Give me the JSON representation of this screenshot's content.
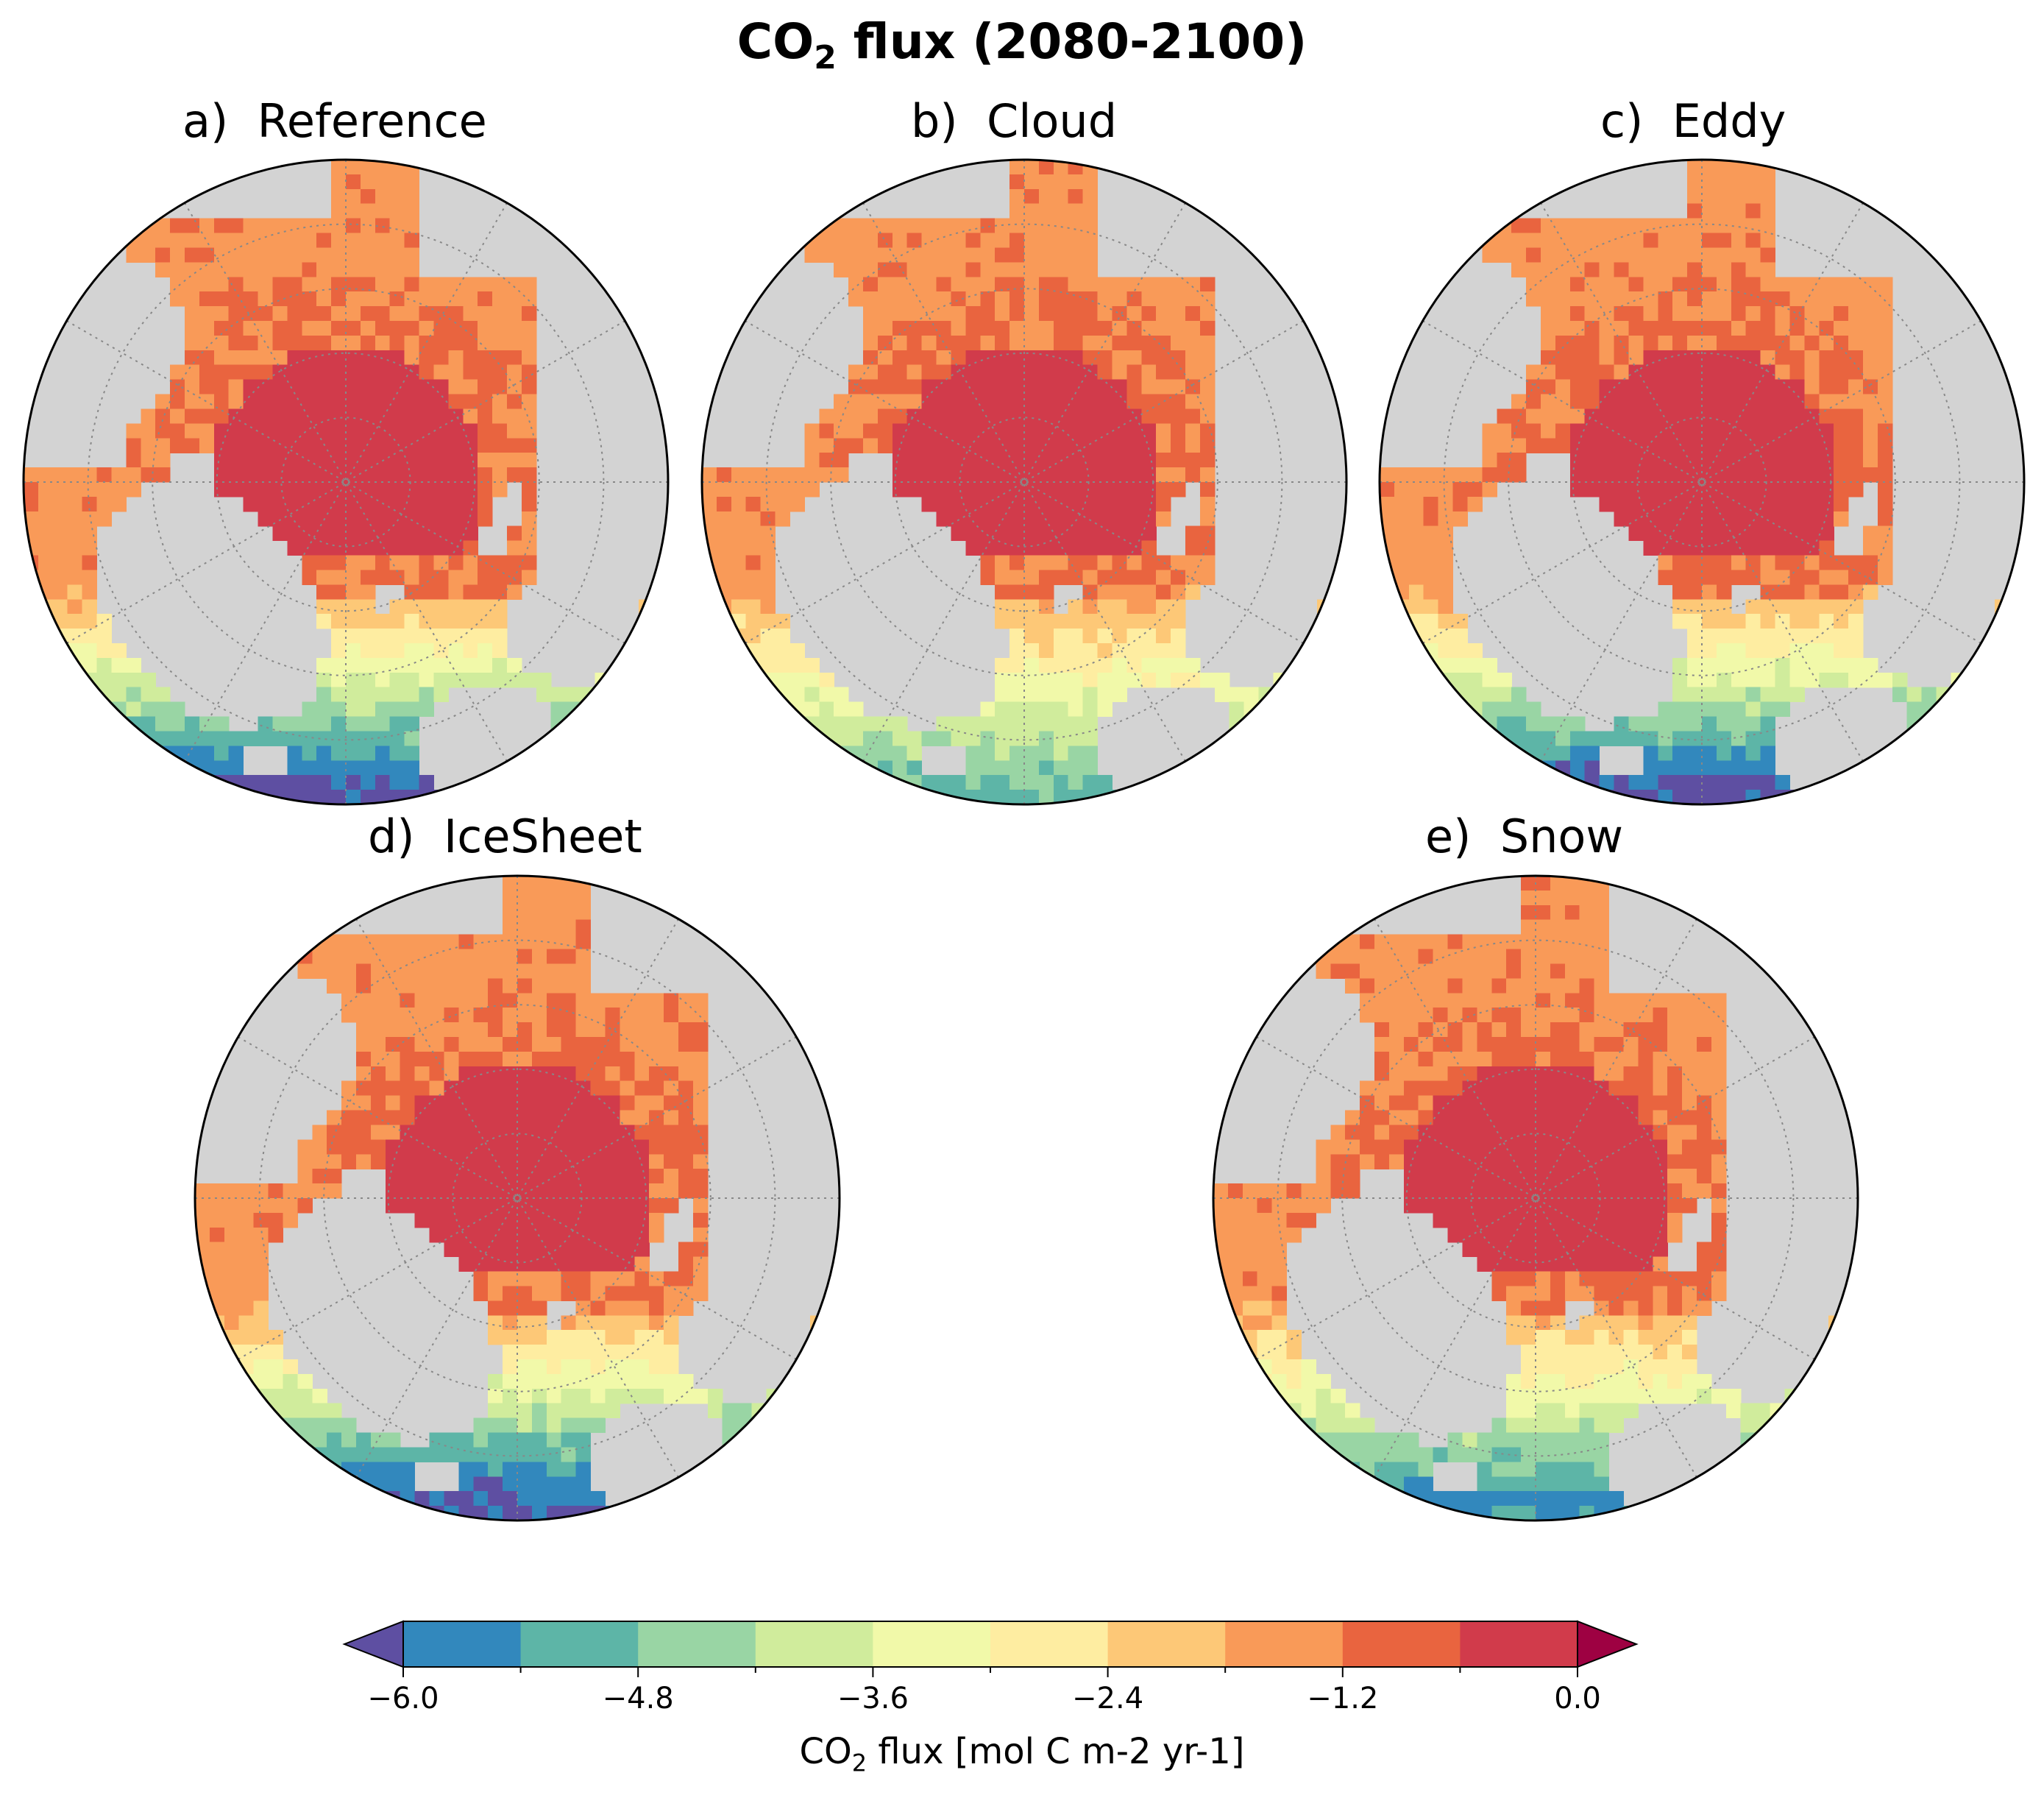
{
  "title": {
    "main": "CO",
    "sub": "2",
    "rest": " flux (2080-2100)"
  },
  "chart_data": {
    "type": "heatmap",
    "projection": "north polar stereographic",
    "panels": [
      {
        "id": "a",
        "title": "a)  Reference",
        "open_water_min": -6.0,
        "central_arctic": -0.2
      },
      {
        "id": "b",
        "title": "b)  Cloud",
        "open_water_min": -4.8,
        "central_arctic": -0.4
      },
      {
        "id": "c",
        "title": "c)  Eddy",
        "open_water_min": -6.0,
        "central_arctic": -0.2
      },
      {
        "id": "d",
        "title": "d)  IceSheet",
        "open_water_min": -6.0,
        "central_arctic": -0.2
      },
      {
        "id": "e",
        "title": "e)  Snow",
        "open_water_min": -5.4,
        "central_arctic": -0.3
      }
    ],
    "colorbar": {
      "vmin": -6.0,
      "vmax": 0.0,
      "step": 0.6,
      "extend": "both",
      "ticks": [
        -6.0,
        -4.8,
        -3.6,
        -2.4,
        -1.2,
        0.0
      ],
      "tick_labels": [
        "−6.0",
        "−4.8",
        "−3.6",
        "−2.4",
        "−1.2",
        "0.0"
      ],
      "label_main": "CO",
      "label_sub": "2",
      "label_rest": " flux [mol C m-2 yr-1]",
      "under_color": "#5e4fa2",
      "over_color": "#9e0142",
      "colors": [
        "#3288bd",
        "#5db5a7",
        "#99d5a4",
        "#d0ec9c",
        "#f1f9a9",
        "#feeda1",
        "#fdc877",
        "#f99a58",
        "#e9643f",
        "#d13b4b"
      ]
    },
    "land_color": "#d3d3d3"
  }
}
